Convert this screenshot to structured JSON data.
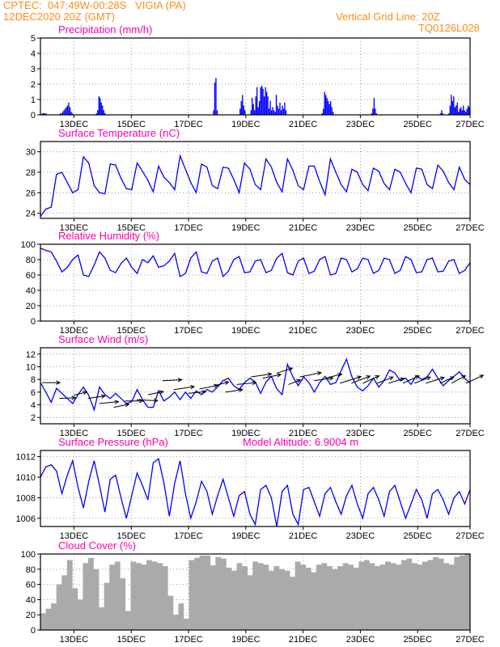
{
  "header": {
    "line1": "CPTEC:  047:49W-00:28S   VIGIA (PA)",
    "line2": "12DEC2020 20Z (GMT)",
    "grid_note": "Vertical Grid Line: 20Z",
    "code": "TQ0126L028"
  },
  "colors": {
    "title": "#ff00aa",
    "header": "#ff8c1a",
    "series": "#0000ff",
    "cloud": "#aaaaaa",
    "wind_arrow": "#000000"
  },
  "x_ticks": [
    "13DEC",
    "15DEC",
    "17DEC",
    "19DEC",
    "21DEC",
    "23DEC",
    "25DEC",
    "27DEC"
  ],
  "chart_data": [
    {
      "type": "bar",
      "title": "Precipitation (mm/h)",
      "ylim": [
        0,
        5
      ],
      "yticks": [
        "0",
        "1",
        "2",
        "3",
        "4",
        "5"
      ],
      "x_range_days": [
        "12DEC2020 20Z",
        "27DEC2020 20Z"
      ],
      "values_hourly": [
        0,
        0.1,
        0.1,
        0.1,
        0.1,
        0,
        0,
        0,
        0,
        0,
        0,
        0,
        0,
        0,
        0,
        0,
        0.1,
        0.1,
        0.2,
        0.3,
        0.4,
        0.5,
        0.6,
        0.8,
        0.5,
        0.2,
        0.1,
        0,
        0,
        0,
        0,
        0,
        0,
        0,
        0,
        0,
        0,
        0,
        0,
        0,
        0,
        0,
        0,
        0,
        0,
        0,
        0.1,
        0.3,
        1.2,
        1.1,
        0.8,
        0.6,
        0.3,
        0.1,
        0,
        0,
        0,
        0,
        0,
        0,
        0,
        0,
        0,
        0,
        0,
        0,
        0,
        0,
        0,
        0,
        0,
        0,
        0,
        0,
        0,
        0,
        0,
        0,
        0,
        0,
        0,
        0,
        0,
        0,
        0,
        0,
        0,
        0,
        0,
        0,
        0,
        0,
        0,
        0,
        0,
        0,
        0,
        0,
        0,
        0,
        0,
        0,
        0,
        0,
        0,
        0,
        0,
        0,
        0,
        0,
        0,
        0,
        0,
        0,
        0,
        0,
        0,
        0,
        0,
        0,
        0,
        0,
        0,
        0,
        0,
        0,
        0,
        0,
        0,
        0,
        0,
        0,
        0,
        0,
        0,
        0,
        0,
        0,
        0,
        0,
        0,
        0,
        0,
        0.3,
        2.1,
        2.4,
        0.3,
        0,
        0,
        0,
        0,
        0,
        0,
        0,
        0,
        0,
        0,
        0,
        0,
        0,
        0,
        0,
        0,
        0,
        0,
        0.4,
        0.9,
        1.3,
        0.6,
        0.3,
        0,
        0,
        0,
        0,
        0.3,
        1.1,
        0.7,
        0.3,
        1.2,
        1.8,
        0.5,
        0.9,
        1.8,
        1.9,
        1.7,
        1.2,
        1.8,
        1.5,
        1.2,
        0.4,
        0.9,
        0.3,
        0.5,
        0.3,
        0.2,
        1.3,
        0.6,
        0.4,
        0.8,
        0.3,
        0.6,
        0.4,
        0.8,
        0.3,
        0,
        0,
        0,
        0,
        0,
        0,
        0,
        0,
        0,
        0,
        0,
        0,
        0,
        0,
        0,
        0,
        0,
        0,
        0,
        0,
        0,
        0,
        0,
        0,
        0,
        0,
        0,
        0,
        0,
        0.1,
        0.4,
        1.5,
        1.3,
        1.1,
        0.9,
        0.7,
        0.9,
        0.5,
        0.2,
        0,
        0,
        0,
        0,
        0,
        0,
        0,
        0,
        0,
        0,
        0,
        0,
        0,
        0,
        0,
        0,
        0,
        0,
        0,
        0,
        0,
        0,
        0,
        0,
        0,
        0,
        0,
        0,
        0,
        0,
        0,
        0.1,
        0.4,
        1.1,
        0.4,
        0.1,
        0,
        0,
        0,
        0,
        0,
        0,
        0,
        0,
        0,
        0,
        0,
        0,
        0,
        0,
        0,
        0,
        0,
        0,
        0,
        0,
        0,
        0,
        0,
        0,
        0,
        0,
        0,
        0,
        0,
        0,
        0,
        0,
        0,
        0,
        0,
        0,
        0,
        0,
        0,
        0,
        0,
        0,
        0,
        0,
        0,
        0,
        0,
        0,
        0,
        0,
        0,
        0,
        0.1,
        0.3,
        0.1,
        0,
        0,
        0,
        0,
        0.1,
        0.6,
        1.3,
        0.9,
        1.2,
        0.5,
        0.6,
        0.8,
        0.2,
        0.4,
        0.5,
        0.3,
        0.6,
        0.3,
        0.2,
        0.4,
        0.6,
        0.5
      ]
    },
    {
      "type": "line",
      "title": "Surface Temperature (nC)",
      "ylim": [
        23.5,
        31
      ],
      "yticks": [
        "24",
        "26",
        "28",
        "30"
      ],
      "ytick_values": [
        24,
        26,
        28,
        30
      ],
      "x_range_days": [
        "12DEC2020 20Z",
        "27DEC2020 20Z"
      ],
      "values_3h": [
        23.7,
        24.4,
        24.6,
        27.8,
        28.0,
        27.0,
        26.0,
        26.3,
        29.5,
        28.9,
        26.7,
        26.0,
        25.9,
        28.8,
        28.7,
        27.4,
        26.4,
        26.3,
        28.9,
        28.1,
        27.2,
        26.1,
        28.6,
        27.5,
        27.0,
        26.3,
        29.6,
        28.3,
        27.0,
        26.0,
        28.8,
        28.5,
        26.7,
        26.4,
        28.5,
        28.4,
        27.3,
        26.0,
        28.9,
        28.3,
        26.8,
        26.3,
        29.3,
        28.5,
        27.0,
        26.1,
        29.3,
        28.2,
        26.7,
        26.3,
        28.6,
        28.6,
        27.1,
        25.8,
        29.3,
        28.0,
        26.8,
        26.1,
        28.3,
        28.0,
        26.8,
        26.2,
        28.4,
        28.1,
        26.9,
        26.3,
        28.3,
        28.0,
        26.9,
        26.0,
        28.4,
        28.3,
        26.8,
        26.4,
        28.7,
        28.1,
        27.0,
        26.3,
        28.5,
        27.3,
        26.8
      ]
    },
    {
      "type": "line",
      "title": "Relative Humidity (%)",
      "ylim": [
        0,
        100
      ],
      "yticks": [
        "0",
        "20",
        "40",
        "60",
        "80",
        "100"
      ],
      "ytick_values": [
        0,
        20,
        40,
        60,
        80,
        100
      ],
      "x_range_days": [
        "12DEC2020 20Z",
        "27DEC2020 20Z"
      ],
      "values_3h": [
        95,
        92,
        90,
        78,
        64,
        70,
        80,
        86,
        60,
        58,
        73,
        90,
        82,
        66,
        63,
        75,
        82,
        70,
        62,
        80,
        76,
        85,
        70,
        72,
        78,
        88,
        58,
        62,
        82,
        90,
        64,
        62,
        78,
        82,
        58,
        65,
        80,
        84,
        63,
        64,
        78,
        80,
        63,
        66,
        82,
        88,
        63,
        60,
        78,
        82,
        62,
        65,
        80,
        84,
        60,
        62,
        82,
        80,
        64,
        68,
        82,
        80,
        62,
        66,
        82,
        80,
        62,
        66,
        84,
        80,
        63,
        64,
        80,
        82,
        64,
        65,
        78,
        80,
        62,
        66,
        76
      ]
    },
    {
      "type": "line",
      "title": "Surface Wind (m/s)",
      "ylim": [
        1,
        13
      ],
      "yticks": [
        "2",
        "4",
        "6",
        "8",
        "10",
        "12"
      ],
      "ytick_values": [
        2,
        4,
        6,
        8,
        10,
        12
      ],
      "x_range_days": [
        "12DEC2020 20Z",
        "27DEC2020 20Z"
      ],
      "values_3h": [
        7.5,
        6.0,
        4.4,
        6.6,
        5.8,
        5.0,
        4.2,
        5.6,
        6.8,
        5.5,
        3.2,
        6.8,
        5.6,
        5.0,
        5.8,
        5.0,
        4.2,
        4.5,
        6.4,
        4.8,
        3.6,
        3.6,
        6.2,
        4.6,
        5.2,
        6.0,
        4.8,
        6.0,
        5.0,
        6.2,
        5.6,
        6.4,
        6.0,
        6.8,
        7.8,
        8.2,
        7.0,
        6.4,
        7.5,
        8.2,
        7.6,
        5.8,
        7.6,
        8.5,
        6.5,
        5.6,
        10.4,
        8.4,
        7.0,
        8.4,
        7.5,
        6.0,
        7.5,
        8.5,
        7.2,
        7.5,
        9.4,
        11.2,
        8.4,
        6.8,
        6.2,
        7.0,
        8.2,
        6.8,
        7.8,
        9.5,
        9.0,
        7.8,
        8.2,
        7.2,
        8.6,
        8.0,
        8.4,
        9.6,
        8.2,
        7.0,
        7.8,
        8.5,
        9.2,
        8.2,
        7.4
      ],
      "arrows_at_days": [
        0.0,
        0.6,
        1.1,
        1.6,
        2.0,
        2.5,
        2.9,
        3.3,
        3.7,
        4.2,
        4.6,
        5.1,
        5.5,
        6.0,
        6.4,
        6.8,
        7.3,
        7.7,
        8.2,
        8.6,
        9.0,
        9.5,
        9.9,
        10.4,
        10.8,
        11.2,
        11.7,
        12.1,
        12.6,
        13.0,
        13.4,
        13.9,
        14.3,
        14.8
      ],
      "arrow_directions_deg": [
        270,
        265,
        245,
        255,
        260,
        250,
        270,
        275,
        250,
        265,
        255,
        260,
        250,
        245,
        255,
        260,
        255,
        250,
        240,
        235,
        250,
        255,
        245,
        240,
        235,
        230,
        235,
        240,
        230,
        235,
        240,
        230,
        225,
        230
      ],
      "arrow_lengths_px": [
        22,
        20,
        18,
        22,
        24,
        20,
        22,
        26,
        20,
        24,
        26,
        22,
        24,
        20,
        22,
        24,
        26,
        24,
        22,
        18,
        28,
        24,
        22,
        30,
        28,
        26,
        24,
        22,
        26,
        24,
        26,
        22,
        24,
        28
      ]
    },
    {
      "type": "line",
      "title": "Surface Pressure (hPa)",
      "model_altitude": "Model Altitude: 6.9004 m",
      "ylim": [
        1005.2,
        1012.6
      ],
      "yticks": [
        "1006",
        "1008",
        "1010",
        "1012"
      ],
      "ytick_values": [
        1006,
        1008,
        1010,
        1012
      ],
      "x_range_days": [
        "12DEC2020 20Z",
        "27DEC2020 20Z"
      ],
      "values_3h": [
        1010,
        1011,
        1011.2,
        1010.6,
        1008.4,
        1010.2,
        1011.6,
        1009,
        1007.0,
        1009.6,
        1011.6,
        1009.2,
        1006.6,
        1009.8,
        1010.2,
        1008.0,
        1006.0,
        1008.2,
        1010.4,
        1009.2,
        1007.8,
        1011.4,
        1011.8,
        1009.4,
        1006.2,
        1009.4,
        1011.6,
        1008.4,
        1006.0,
        1007.6,
        1009.6,
        1008.6,
        1006.4,
        1008.2,
        1009.8,
        1008.0,
        1006.2,
        1008.2,
        1008.6,
        1006.4,
        1005.4,
        1008.8,
        1009.2,
        1008.0,
        1005.2,
        1008.6,
        1009.2,
        1006.4,
        1005.4,
        1008.8,
        1009.0,
        1007.6,
        1006.2,
        1008.4,
        1009.0,
        1007.6,
        1006.4,
        1008.2,
        1009.2,
        1007.4,
        1006.0,
        1008.4,
        1009.0,
        1007.8,
        1006.2,
        1008.6,
        1009.2,
        1007.6,
        1006.0,
        1007.4,
        1008.8,
        1007.8,
        1006.0,
        1008.4,
        1008.8,
        1007.8,
        1006.4,
        1008.0,
        1008.6,
        1007.4,
        1008.8
      ]
    },
    {
      "type": "bar",
      "title": "Cloud Cover (%)",
      "ylim": [
        0,
        100
      ],
      "yticks": [
        "0",
        "20",
        "40",
        "60",
        "80",
        "100"
      ],
      "ytick_values": [
        0,
        20,
        40,
        60,
        80,
        100
      ],
      "x_range_days": [
        "12DEC2020 20Z",
        "27DEC2020 20Z"
      ],
      "values_3h": [
        22,
        28,
        35,
        60,
        72,
        92,
        55,
        40,
        88,
        95,
        80,
        30,
        62,
        86,
        90,
        68,
        25,
        90,
        88,
        86,
        92,
        90,
        88,
        84,
        45,
        20,
        35,
        15,
        92,
        95,
        98,
        98,
        85,
        96,
        94,
        82,
        78,
        88,
        84,
        72,
        90,
        88,
        86,
        78,
        84,
        80,
        78,
        70,
        90,
        86,
        82,
        76,
        86,
        88,
        84,
        80,
        84,
        88,
        86,
        82,
        90,
        92,
        88,
        84,
        86,
        90,
        88,
        86,
        92,
        94,
        88,
        86,
        90,
        92,
        96,
        94,
        88,
        86,
        96,
        98,
        100
      ]
    }
  ]
}
